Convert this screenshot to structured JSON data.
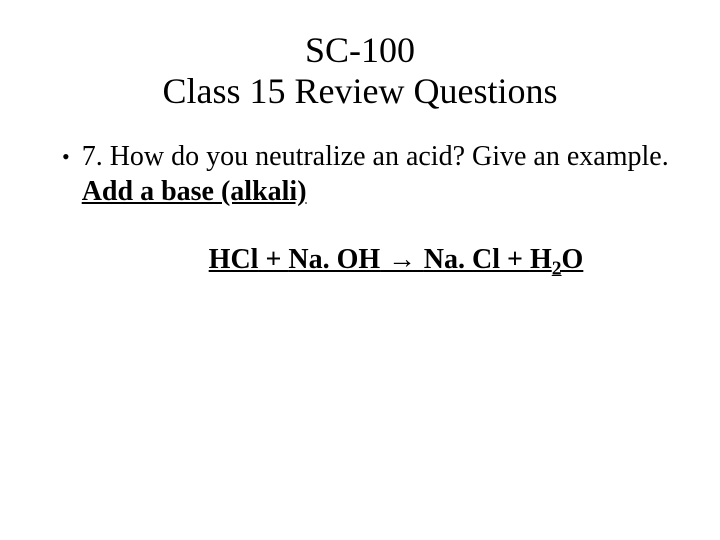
{
  "background_color": "#ffffff",
  "text_color": "#000000",
  "font_family": "Times New Roman",
  "title": {
    "line1": "SC-100",
    "line2": "Class 15 Review Questions",
    "fontsize": 36,
    "weight": 400,
    "align": "center"
  },
  "bullet": {
    "marker": "•",
    "question_text": "7. How do you neutralize an acid? Give an example. ",
    "answer_text": "Add a base (alkali)",
    "fontsize": 28,
    "answer_style": {
      "bold": true,
      "underline": true
    }
  },
  "equation": {
    "lhs1": "HCl",
    "plus1": " + ",
    "lhs2": "Na. OH",
    "arrow": " → ",
    "rhs1": "Na. Cl",
    "plus2": " + ",
    "rhs2_prefix": "H",
    "rhs2_sub": "2",
    "rhs2_suffix": "O",
    "fontsize": 28,
    "style": {
      "bold": true,
      "underline": true
    }
  }
}
